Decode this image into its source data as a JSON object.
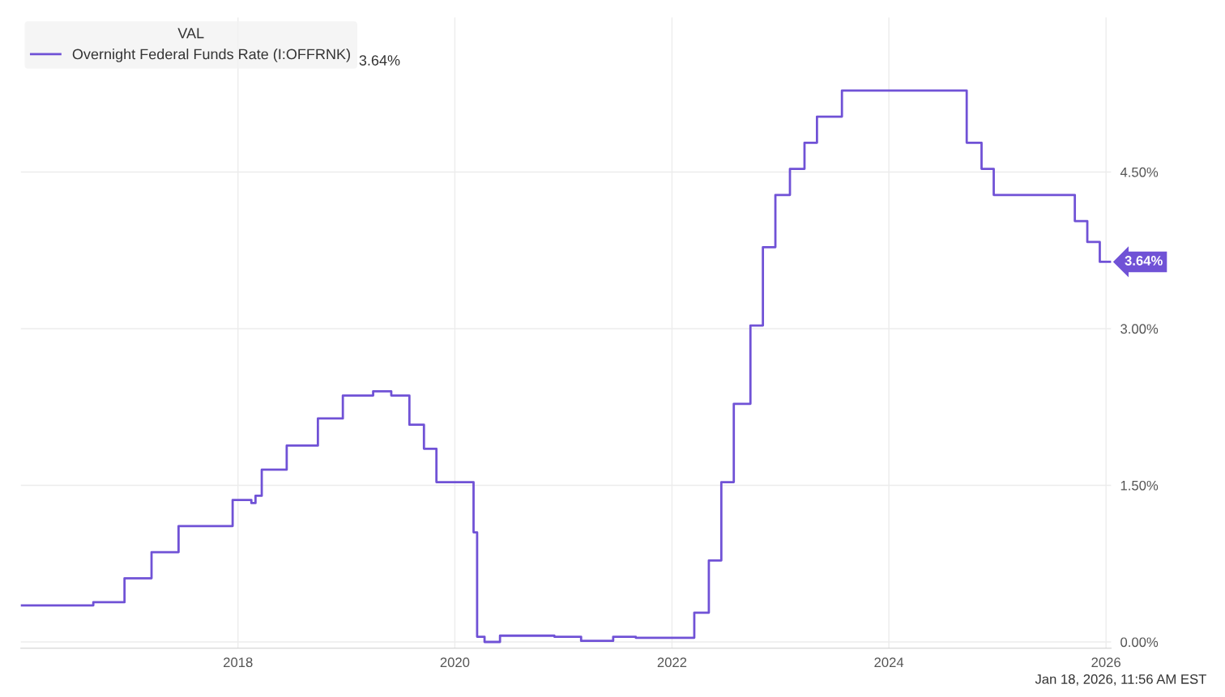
{
  "chart_data": {
    "type": "step",
    "x": [
      "2016-01-01",
      "2016-09-01",
      "2016-12-15",
      "2017-03-16",
      "2017-06-15",
      "2017-12-14",
      "2018-02-15",
      "2018-03-01",
      "2018-03-22",
      "2018-06-14",
      "2018-09-27",
      "2018-12-20",
      "2019-04-01",
      "2019-06-01",
      "2019-08-01",
      "2019-09-19",
      "2019-10-31",
      "2020-03-04",
      "2020-03-16",
      "2020-04-10",
      "2020-06-01",
      "2020-12-01",
      "2021-03-01",
      "2021-06-17",
      "2021-09-01",
      "2022-03-17",
      "2022-05-05",
      "2022-06-16",
      "2022-07-28",
      "2022-09-22",
      "2022-11-03",
      "2022-12-15",
      "2023-02-02",
      "2023-03-23",
      "2023-05-04",
      "2023-07-27",
      "2024-09-19",
      "2024-11-08",
      "2024-12-19",
      "2025-09-18",
      "2025-10-30",
      "2025-12-11",
      "2026-01-18"
    ],
    "series": [
      {
        "name": "Overnight Federal Funds Rate (I:OFFRNK)",
        "color": "#7052d6",
        "values": [
          0.35,
          0.38,
          0.61,
          0.86,
          1.11,
          1.36,
          1.33,
          1.4,
          1.65,
          1.88,
          2.14,
          2.36,
          2.4,
          2.36,
          2.08,
          1.85,
          1.53,
          1.05,
          0.05,
          0.0,
          0.06,
          0.05,
          0.01,
          0.05,
          0.04,
          0.28,
          0.78,
          1.53,
          2.28,
          3.03,
          3.78,
          4.28,
          4.53,
          4.78,
          5.03,
          5.28,
          4.78,
          4.53,
          4.28,
          4.03,
          3.83,
          3.64,
          3.64
        ]
      }
    ],
    "xlim": [
      "2016-01-01",
      "2026-01-18"
    ],
    "xticks": [
      {
        "value": "2018-01-01",
        "label": "2018"
      },
      {
        "value": "2020-01-01",
        "label": "2020"
      },
      {
        "value": "2022-01-01",
        "label": "2022"
      },
      {
        "value": "2024-01-01",
        "label": "2024"
      },
      {
        "value": "2026-01-01",
        "label": "2026"
      }
    ],
    "ylim": [
      -0.06,
      5.98
    ],
    "yticks": [
      {
        "value": 0,
        "label": "0.00%"
      },
      {
        "value": 1.5,
        "label": "1.50%"
      },
      {
        "value": 3,
        "label": "3.00%"
      },
      {
        "value": 4.5,
        "label": "4.50%"
      }
    ],
    "grid": true,
    "legend": "top left",
    "line_style": "solid",
    "marker": "none",
    "legend_title": "VAL",
    "annotations": [
      "3.64%",
      {
        "text": "3.64%",
        "x": "2026-01-18",
        "y": 3.64
      },
      "Jan 18, 2026, 11:56 AM EST"
    ]
  }
}
